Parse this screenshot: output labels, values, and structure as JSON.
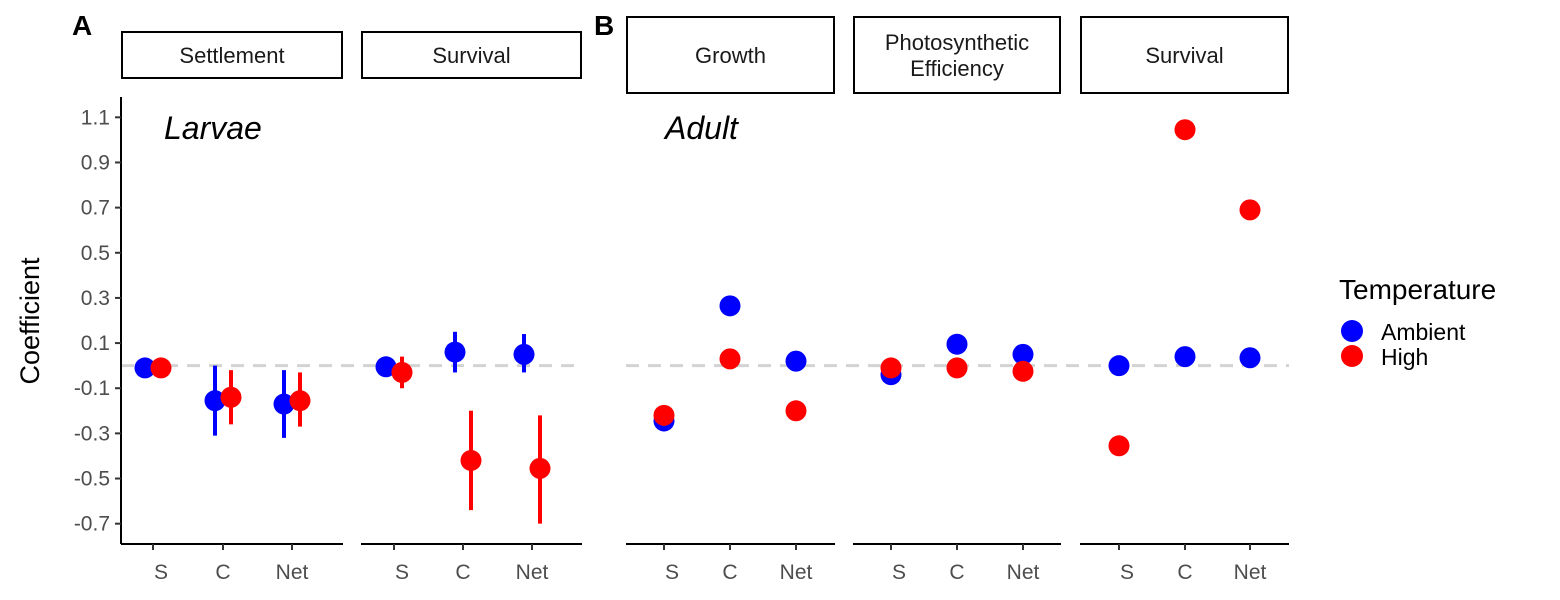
{
  "chart_data": {
    "type": "scatter",
    "panel_letters": [
      "A",
      "B"
    ],
    "group_labels": [
      "Larvae",
      "Adult"
    ],
    "ylabel": "Coefficient",
    "ylim": [
      -0.79,
      1.19
    ],
    "y_ticks": [
      "-0.7",
      "-0.5",
      "-0.3",
      "-0.1",
      "0.1",
      "0.3",
      "0.5",
      "0.7",
      "0.9",
      "1.1"
    ],
    "x_categories": [
      "S",
      "C",
      "Net"
    ],
    "reference_line": 0,
    "legend": {
      "title": "Temperature",
      "placement": "right",
      "entries": [
        {
          "name": "Ambient",
          "color": "#0000FF"
        },
        {
          "name": "High",
          "color": "#FF0000"
        }
      ]
    },
    "facets": [
      {
        "label": [
          "Settlement"
        ],
        "series": [
          {
            "name": "Ambient",
            "values": [
              -0.01,
              -0.155,
              -0.17
            ],
            "lower": [
              null,
              -0.31,
              -0.32
            ],
            "upper": [
              null,
              0.0,
              -0.02
            ]
          },
          {
            "name": "High",
            "values": [
              -0.01,
              -0.14,
              -0.155
            ],
            "lower": [
              null,
              -0.26,
              -0.27
            ],
            "upper": [
              null,
              -0.02,
              -0.03
            ]
          }
        ]
      },
      {
        "label": [
          "Survival"
        ],
        "series": [
          {
            "name": "Ambient",
            "values": [
              -0.005,
              0.06,
              0.05
            ],
            "lower": [
              null,
              -0.03,
              -0.03
            ],
            "upper": [
              null,
              0.15,
              0.14
            ]
          },
          {
            "name": "High",
            "values": [
              -0.03,
              -0.42,
              -0.455
            ],
            "lower": [
              -0.1,
              -0.64,
              -0.7
            ],
            "upper": [
              0.04,
              -0.2,
              -0.22
            ]
          }
        ]
      },
      {
        "label": [
          "Growth"
        ],
        "series": [
          {
            "name": "Ambient",
            "values": [
              -0.245,
              0.265,
              0.02
            ]
          },
          {
            "name": "High",
            "values": [
              -0.22,
              0.03,
              -0.2
            ]
          }
        ]
      },
      {
        "label": [
          "Photosynthetic",
          "Efficiency"
        ],
        "series": [
          {
            "name": "Ambient",
            "values": [
              -0.04,
              0.095,
              0.05
            ]
          },
          {
            "name": "High",
            "values": [
              -0.01,
              -0.01,
              -0.025
            ]
          }
        ]
      },
      {
        "label": [
          "Survival"
        ],
        "series": [
          {
            "name": "Ambient",
            "values": [
              0.0,
              0.04,
              0.035
            ]
          },
          {
            "name": "High",
            "values": [
              -0.355,
              1.045,
              0.69
            ]
          }
        ]
      }
    ]
  }
}
